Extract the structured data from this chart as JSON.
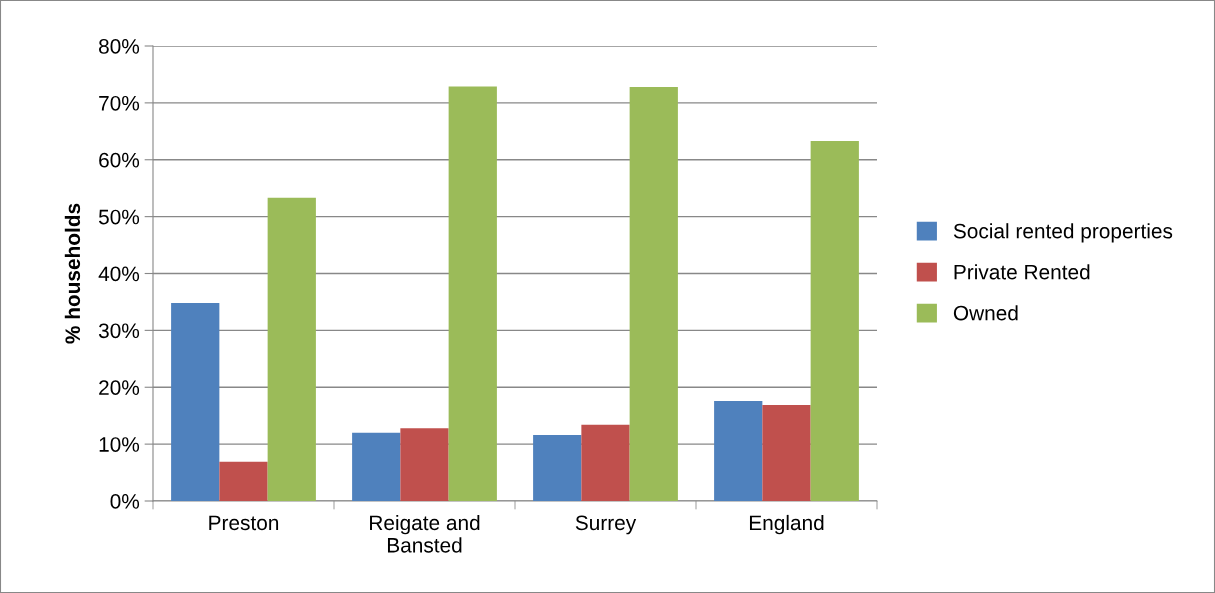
{
  "chart_data": {
    "type": "bar",
    "ylabel": "% households",
    "categories": [
      "Preston",
      "Reigate and\nBansted",
      "Surrey",
      "England"
    ],
    "series": [
      {
        "name": "Social rented properties",
        "color": "#4f81bd",
        "values": [
          34.8,
          12.0,
          11.6,
          17.6
        ]
      },
      {
        "name": "Private Rented",
        "color": "#c0504d",
        "values": [
          6.9,
          12.8,
          13.4,
          16.9
        ]
      },
      {
        "name": "Owned",
        "color": "#9bbb59",
        "values": [
          53.3,
          72.9,
          72.8,
          63.3
        ]
      }
    ],
    "ylim": [
      0,
      80
    ],
    "yticks": [
      {
        "value": 0,
        "label": "0%"
      },
      {
        "value": 10,
        "label": "10%"
      },
      {
        "value": 20,
        "label": "20%"
      },
      {
        "value": 30,
        "label": "30%"
      },
      {
        "value": 40,
        "label": "40%"
      },
      {
        "value": 50,
        "label": "50%"
      },
      {
        "value": 60,
        "label": "60%"
      },
      {
        "value": 70,
        "label": "70%"
      },
      {
        "value": 80,
        "label": "80%"
      }
    ],
    "grid": "y",
    "legend": "right"
  }
}
